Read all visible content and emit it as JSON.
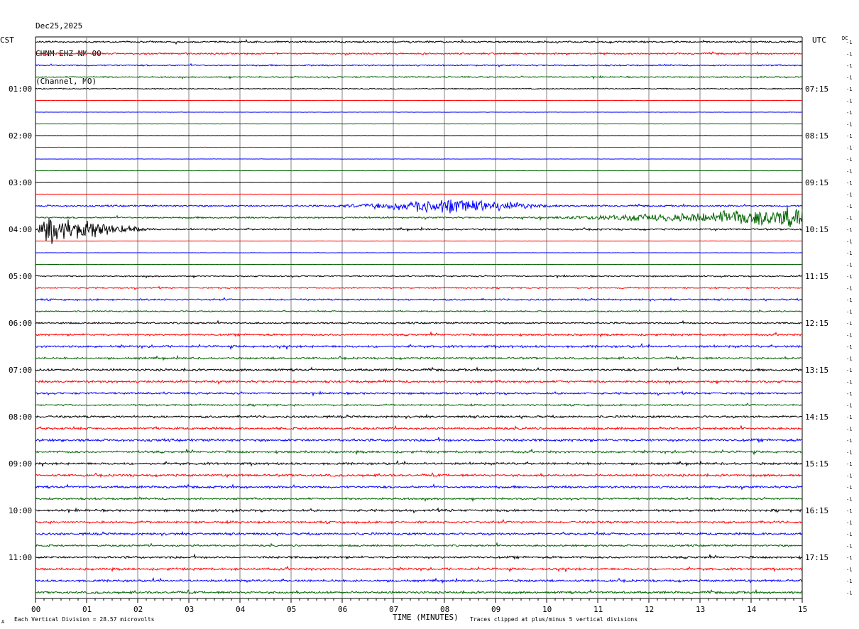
{
  "header": {
    "date": "Dec25,2025",
    "station": "CHNM EHZ NM 00",
    "channel": "(Channel, MO)"
  },
  "left_axis_title": "CST",
  "right_axis_title": "UTC",
  "dc_label": "DC",
  "row_scale_label": "-1",
  "footer": {
    "vertical_division": "Each Vertical Division =   28.57 microvolts",
    "clip_note": "Traces clipped at plus/minus 5 vertical divisions",
    "corner_mark": "A"
  },
  "colors": [
    "#000000",
    "#ff0000",
    "#0000ff",
    "#006400"
  ],
  "chart_data": {
    "type": "line",
    "xlabel": "TIME (MINUTES)",
    "x_ticks": [
      "00",
      "01",
      "02",
      "03",
      "04",
      "05",
      "06",
      "07",
      "08",
      "09",
      "10",
      "11",
      "12",
      "13",
      "14",
      "15"
    ],
    "xlim": [
      0,
      15
    ],
    "row_count": 48,
    "row_minutes": 15,
    "left_time_labels": [
      {
        "row": 4,
        "text": "01:00"
      },
      {
        "row": 8,
        "text": "02:00"
      },
      {
        "row": 12,
        "text": "03:00"
      },
      {
        "row": 16,
        "text": "04:00"
      },
      {
        "row": 20,
        "text": "05:00"
      },
      {
        "row": 24,
        "text": "06:00"
      },
      {
        "row": 28,
        "text": "07:00"
      },
      {
        "row": 32,
        "text": "08:00"
      },
      {
        "row": 36,
        "text": "09:00"
      },
      {
        "row": 40,
        "text": "10:00"
      },
      {
        "row": 44,
        "text": "11:00"
      }
    ],
    "right_time_labels": [
      {
        "row": 4,
        "text": "07:15"
      },
      {
        "row": 8,
        "text": "08:15"
      },
      {
        "row": 12,
        "text": "09:15"
      },
      {
        "row": 16,
        "text": "10:15"
      },
      {
        "row": 20,
        "text": "11:15"
      },
      {
        "row": 24,
        "text": "12:15"
      },
      {
        "row": 28,
        "text": "13:15"
      },
      {
        "row": 32,
        "text": "14:15"
      },
      {
        "row": 36,
        "text": "15:15"
      },
      {
        "row": 40,
        "text": "16:15"
      },
      {
        "row": 44,
        "text": "17:15"
      }
    ],
    "trace_noise_level": [
      0.6,
      0.6,
      0.5,
      0.5,
      0.4,
      0.1,
      0.1,
      0.1,
      0.1,
      0.1,
      0.1,
      0.1,
      0.1,
      0.1,
      0.6,
      0.6,
      0.6,
      0.1,
      0.1,
      0.1,
      0.5,
      0.5,
      0.6,
      0.5,
      0.6,
      0.7,
      0.8,
      0.7,
      0.8,
      0.8,
      0.7,
      0.6,
      0.8,
      0.8,
      0.9,
      0.8,
      0.8,
      0.8,
      0.8,
      0.7,
      0.8,
      0.8,
      0.8,
      0.7,
      0.8,
      0.8,
      0.8,
      0.8
    ],
    "events": [
      {
        "row": 14,
        "start_min": 5.5,
        "peak_min": 8.2,
        "end_min": 10.5,
        "peak_amplitude": 1.6
      },
      {
        "row": 15,
        "start_min": 9.5,
        "peak_min": 15.0,
        "end_min": 15.0,
        "peak_amplitude": 2.0
      },
      {
        "row": 16,
        "start_min": 0.0,
        "peak_min": 0.2,
        "end_min": 2.5,
        "peak_amplitude": 3.0
      }
    ]
  }
}
